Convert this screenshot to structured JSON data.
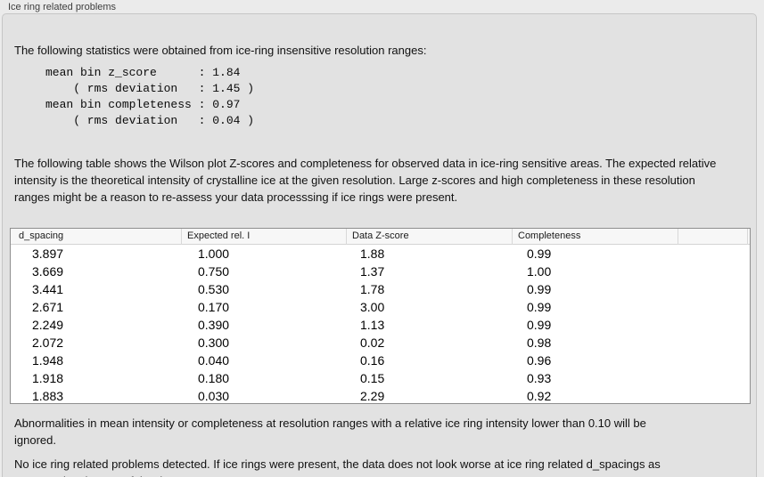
{
  "colors": {
    "window_bg": "#ebebeb",
    "groupbox_bg": "#e2e2e2",
    "groupbox_border": "#c6c6c6",
    "table_bg": "#ffffff",
    "table_border": "#8f8f8f",
    "header_bg": "#f7f7f7",
    "header_separator": "#d8d8d8",
    "body_text": "#111111",
    "title_text": "#3d3d3d"
  },
  "group_box": {
    "title": "Ice ring related problems"
  },
  "intro": {
    "text": "The following statistics were obtained from ice-ring insensitive resolution ranges:"
  },
  "stats_block": {
    "lines": [
      "mean bin z_score      : 1.84",
      "    ( rms deviation   : 1.45 )",
      "mean bin completeness : 0.97",
      "    ( rms deviation   : 0.04 )"
    ]
  },
  "description": {
    "text": "The following table shows the Wilson plot Z-scores and completeness for observed data in ice-ring sensitive areas. The expected relative intensity is the theoretical intensity of crystalline ice at the given resolution. Large z-scores and high completeness in these resolution ranges might be a reason to re-assess your data processsing if ice rings were present."
  },
  "table": {
    "columns": [
      "d_spacing",
      "Expected rel. I",
      "Data Z-score",
      "Completeness"
    ],
    "rows": [
      [
        "3.897",
        "1.000",
        "1.88",
        "0.99"
      ],
      [
        "3.669",
        "0.750",
        "1.37",
        "1.00"
      ],
      [
        "3.441",
        "0.530",
        "1.78",
        "0.99"
      ],
      [
        "2.671",
        "0.170",
        "3.00",
        "0.99"
      ],
      [
        "2.249",
        "0.390",
        "1.13",
        "0.99"
      ],
      [
        "2.072",
        "0.300",
        "0.02",
        "0.98"
      ],
      [
        "1.948",
        "0.040",
        "0.16",
        "0.96"
      ],
      [
        "1.918",
        "0.180",
        "0.15",
        "0.93"
      ],
      [
        "1.883",
        "0.030",
        "2.29",
        "0.92"
      ]
    ]
  },
  "note_ignore": {
    "text": "Abnormalities in mean intensity or completeness at resolution ranges with a relative ice ring intensity lower than 0.10 will be ignored."
  },
  "conclusion": {
    "text": "No ice ring related problems detected. If ice rings were present, the data does not look worse at ice ring related d_spacings as compared to the rest of the data set."
  }
}
